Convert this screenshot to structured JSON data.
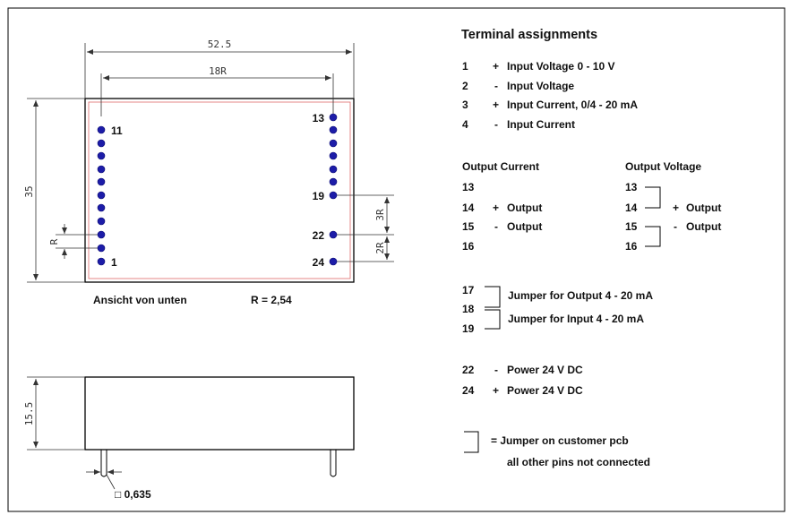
{
  "title": "Terminal assignments",
  "drawing": {
    "dim_width": "52.5",
    "dim_pitch_span": "18R",
    "dim_height": "35",
    "dim_r": "R",
    "dim_3r": "3R",
    "dim_2r": "2R",
    "dim_side_height": "15.5",
    "pin_size": "□ 0,635",
    "view_label": "Ansicht von unten",
    "r_value": "R = 2,54",
    "left_pins": [
      "11",
      "1"
    ],
    "right_pins": [
      "13",
      "19",
      "22",
      "24"
    ]
  },
  "input_terminals": [
    {
      "num": "1",
      "sign": "+",
      "text": "Input Voltage 0 - 10 V"
    },
    {
      "num": "2",
      "sign": "-",
      "text": "Input Voltage"
    },
    {
      "num": "3",
      "sign": "+",
      "text": "Input Current, 0/4 - 20 mA"
    },
    {
      "num": "4",
      "sign": "-",
      "text": "Input Current"
    }
  ],
  "output_current": {
    "heading": "Output Current",
    "pins": [
      "13",
      "14",
      "15",
      "16"
    ],
    "items": [
      {
        "sign": "+",
        "text": "Output"
      },
      {
        "sign": "-",
        "text": "Output"
      }
    ]
  },
  "output_voltage": {
    "heading": "Output Voltage",
    "pins": [
      "13",
      "14",
      "15",
      "16"
    ],
    "items": [
      {
        "sign": "+",
        "text": "Output"
      },
      {
        "sign": "-",
        "text": "Output"
      }
    ]
  },
  "jumpers": {
    "pins": [
      "17",
      "18",
      "19"
    ],
    "output_jumper": "Jumper for Output 4 - 20 mA",
    "input_jumper": "Jumper for Input 4 - 20 mA"
  },
  "power": [
    {
      "num": "22",
      "sign": "-",
      "text": "Power 24 V DC"
    },
    {
      "num": "24",
      "sign": "+",
      "text": "Power 24 V DC"
    }
  ],
  "legend": {
    "jumper_note": "= Jumper on customer pcb",
    "other_note": "all other pins not connected"
  },
  "colors": {
    "pin": "#1c1ca8",
    "outline": "#000000",
    "inner_outline": "#e06a6a"
  }
}
